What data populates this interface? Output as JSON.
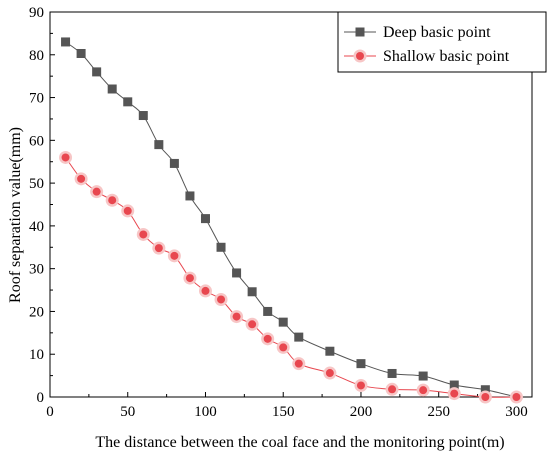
{
  "chart_data": {
    "type": "line",
    "title": "",
    "xlabel": "The distance between the coal face and the monitoring point(m)",
    "ylabel": "Roof separation value(mm)",
    "xlim": [
      0,
      310
    ],
    "ylim": [
      0,
      90
    ],
    "xticks": [
      0,
      50,
      100,
      150,
      200,
      250,
      300
    ],
    "yticks": [
      0,
      10,
      20,
      30,
      40,
      50,
      60,
      70,
      80,
      90
    ],
    "grid": false,
    "legend_position": "top-right",
    "series": [
      {
        "name": "Deep basic point",
        "color": "#555555",
        "marker": "square",
        "x": [
          10,
          20,
          30,
          40,
          50,
          60,
          70,
          80,
          90,
          100,
          110,
          120,
          130,
          140,
          150,
          160,
          180,
          200,
          220,
          240,
          260,
          280,
          300
        ],
        "y": [
          83,
          80.3,
          76,
          72,
          69,
          65.8,
          59,
          54.6,
          47,
          41.7,
          35,
          29,
          24.6,
          20,
          17.5,
          14,
          10.7,
          7.8,
          5.5,
          4.9,
          2.8,
          1.7,
          0
        ]
      },
      {
        "name": "Shallow basic point",
        "color": "#e8474f",
        "marker": "circle",
        "x": [
          10,
          20,
          30,
          40,
          50,
          60,
          70,
          80,
          90,
          100,
          110,
          120,
          130,
          140,
          150,
          160,
          180,
          200,
          220,
          240,
          260,
          280,
          300
        ],
        "y": [
          56,
          51,
          48,
          46,
          43.5,
          38,
          34.8,
          33,
          27.8,
          24.8,
          22.8,
          18.8,
          17,
          13.6,
          11.6,
          7.8,
          5.6,
          2.7,
          1.8,
          1.6,
          0.8,
          0,
          0
        ]
      }
    ]
  }
}
